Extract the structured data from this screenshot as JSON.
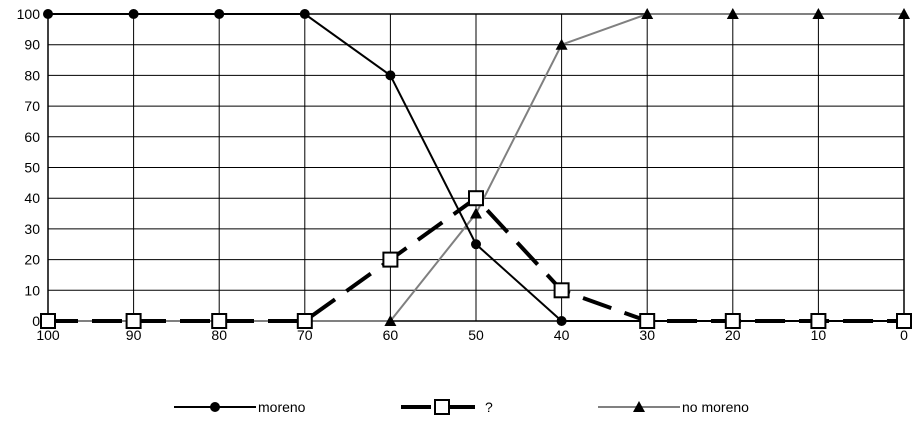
{
  "chart_data": {
    "type": "line",
    "x": [
      100,
      90,
      80,
      70,
      60,
      50,
      40,
      30,
      20,
      10,
      0
    ],
    "x_reversed": true,
    "ylim": [
      0,
      100
    ],
    "yticks": [
      0,
      10,
      20,
      30,
      40,
      50,
      60,
      70,
      80,
      90,
      100
    ],
    "xticks": [
      "100",
      "90",
      "80",
      "70",
      "60",
      "50",
      "40",
      "30",
      "20",
      "10",
      "0"
    ],
    "grid": true,
    "legend_position": "bottom",
    "series": [
      {
        "name": "moreno",
        "values": [
          100,
          100,
          100,
          100,
          80,
          25,
          0,
          0,
          0,
          0,
          0
        ],
        "color": "#000000",
        "marker": "circle",
        "line_style": "solid"
      },
      {
        "name": "?",
        "values": [
          0,
          0,
          0,
          0,
          20,
          40,
          10,
          0,
          0,
          0,
          0
        ],
        "color": "#000000",
        "marker": "square-open",
        "line_style": "dashed-bold"
      },
      {
        "name": "no moreno",
        "values": [
          0,
          0,
          0,
          0,
          0,
          35,
          90,
          100,
          100,
          100,
          100
        ],
        "color": "#808080",
        "marker": "triangle",
        "line_style": "solid"
      }
    ]
  }
}
